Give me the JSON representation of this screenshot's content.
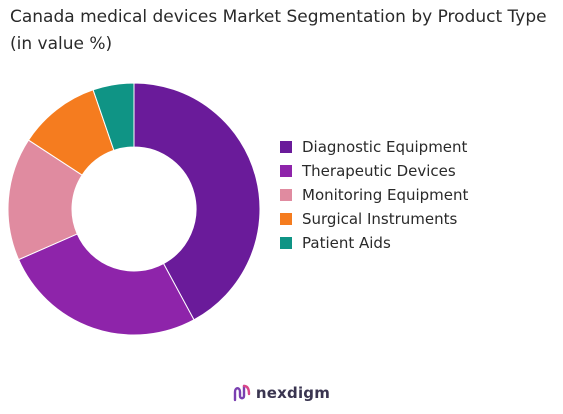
{
  "header": {
    "title": "Canada medical devices Market Segmentation by Product Type (in value %)"
  },
  "chart_data": {
    "type": "pie",
    "variant": "donut",
    "title": "Canada medical devices Market Segmentation by Product Type (in value %)",
    "categories": [
      "Diagnostic Equipment",
      "Therapeutic Devices",
      "Monitoring Equipment",
      "Surgical Instruments",
      "Patient Aids"
    ],
    "values": [
      40,
      25,
      15,
      10,
      5
    ],
    "colors": [
      "#6a1b9a",
      "#8e24aa",
      "#e08ba0",
      "#f57c1f",
      "#0f9485"
    ],
    "legend_position": "right"
  },
  "brand": {
    "name": "nexdigm",
    "icon": "nexdigm-logo-icon"
  }
}
